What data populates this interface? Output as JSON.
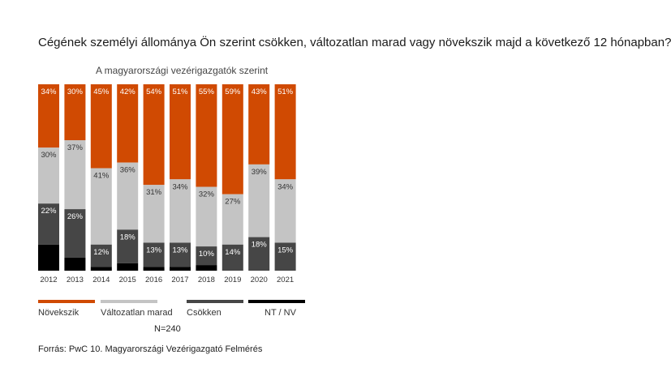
{
  "chart_data": {
    "type": "bar",
    "stacked": true,
    "normalized": true,
    "title": "Cégének személyi állománya Ön szerint csökken, változatlan marad vagy növekszik majd a következő 12 hónapban?",
    "subtitle": "A magyarországi vezérigazgatók szerint",
    "categories": [
      "2012",
      "2013",
      "2014",
      "2015",
      "2016",
      "2017",
      "2018",
      "2019",
      "2020",
      "2021"
    ],
    "series": [
      {
        "name": "Növekszik",
        "color": "#d04a02",
        "label_color": "#ffffff",
        "values": [
          34,
          30,
          45,
          42,
          54,
          51,
          55,
          59,
          43,
          51
        ],
        "labels": [
          "34%",
          "30%",
          "45%",
          "42%",
          "54%",
          "51%",
          "55%",
          "59%",
          "43%",
          "51%"
        ]
      },
      {
        "name": "Változatlan marad",
        "color": "#c4c4c4",
        "label_color": "#333333",
        "values": [
          30,
          37,
          41,
          36,
          31,
          34,
          32,
          27,
          39,
          34
        ],
        "labels": [
          "30%",
          "37%",
          "41%",
          "36%",
          "31%",
          "34%",
          "32%",
          "27%",
          "39%",
          "34%"
        ]
      },
      {
        "name": "Csökken",
        "color": "#464646",
        "label_color": "#ffffff",
        "values": [
          22,
          26,
          12,
          18,
          13,
          13,
          10,
          14,
          18,
          15
        ],
        "labels": [
          "22%",
          "26%",
          "12%",
          "18%",
          "13%",
          "13%",
          "10%",
          "14%",
          "18%",
          "15%"
        ]
      },
      {
        "name": "NT / NV",
        "color": "#000000",
        "label_color": "#ffffff",
        "values": [
          14,
          7,
          2,
          4,
          2,
          2,
          3,
          0,
          0,
          0
        ],
        "labels": [
          "",
          "",
          "",
          "",
          "",
          "",
          "",
          "",
          "",
          ""
        ]
      }
    ],
    "ylim": [
      0,
      100
    ],
    "grid": false,
    "legend_position": "bottom"
  },
  "n_label": "N=240",
  "source": "Forrás: PwC 10. Magyarországi Vezérigazgató Felmérés"
}
